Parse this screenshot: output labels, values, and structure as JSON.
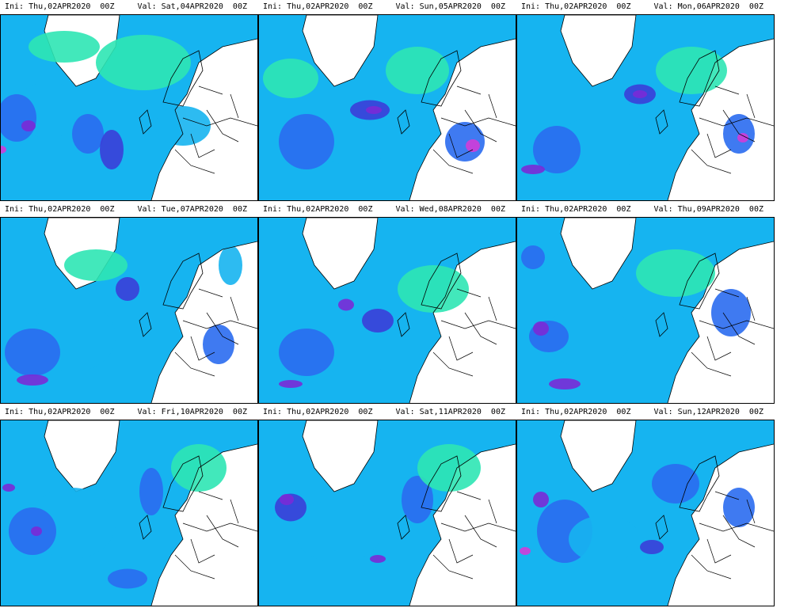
{
  "panels": [
    {
      "ini": "Ini: Thu,02APR2020  00Z",
      "val": "Val: Sat,04APR2020  00Z"
    },
    {
      "ini": "Ini: Thu,02APR2020  00Z",
      "val": "Val: Sun,05APR2020  00Z"
    },
    {
      "ini": "Ini: Thu,02APR2020  00Z",
      "val": "Val: Mon,06APR2020  00Z"
    },
    {
      "ini": "Ini: Thu,02APR2020  00Z",
      "val": "Val: Tue,07APR2020  00Z"
    },
    {
      "ini": "Ini: Thu,02APR2020  00Z",
      "val": "Val: Wed,08APR2020  00Z"
    },
    {
      "ini": "Ini: Thu,02APR2020  00Z",
      "val": "Val: Thu,09APR2020  00Z"
    },
    {
      "ini": "Ini: Thu,02APR2020  00Z",
      "val": "Val: Fri,10APR2020  00Z"
    },
    {
      "ini": "Ini: Thu,02APR2020  00Z",
      "val": "Val: Sat,11APR2020  00Z"
    },
    {
      "ini": "Ini: Thu,02APR2020  00Z",
      "val": "Val: Sun,12APR2020  00Z"
    }
  ],
  "palette": {
    "light": "#2ee6b4",
    "cyan": "#16b4f0",
    "blue": "#2a6cf0",
    "dark": "#3a3ed8",
    "violet": "#7a2ad6",
    "magenta": "#d23cd8",
    "coast": "#000000",
    "land_bg": "#ffffff"
  }
}
